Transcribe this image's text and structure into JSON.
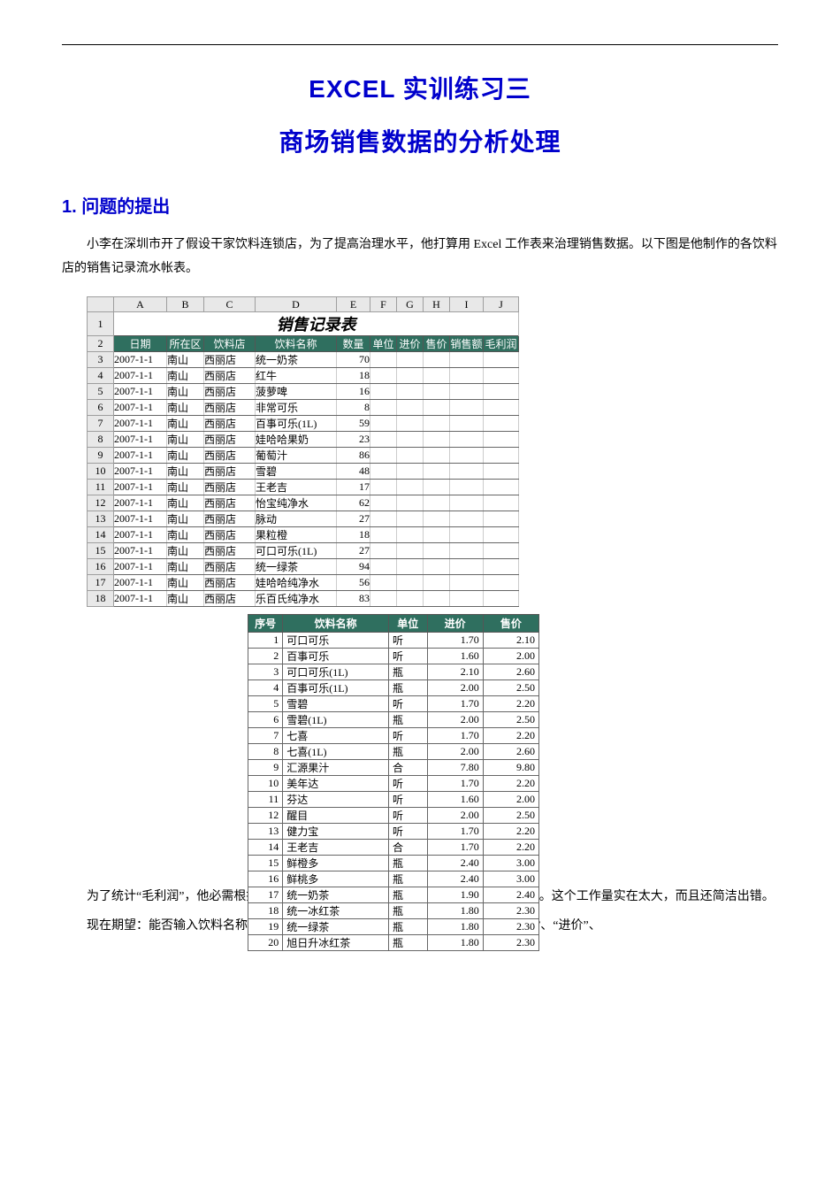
{
  "titles": {
    "line1": "EXCEL 实训练习三",
    "line2": "商场销售数据的分析处理"
  },
  "section1": {
    "heading": "1.  问题的提出",
    "para1": "小李在深圳市开了假设干家饮料连锁店，为了提高治理水平，他打算用 Excel 工作表来治理销售数据。以下图是他制作的各饮料店的销售记录流水帐表。",
    "para2": "为了统计“毛利润”，他必需根据“饮料根本信息”表中查找每种饮料的“进价”和“售价”。这个工作量实在太大，而且还简洁出错。",
    "para3": "现在期望：能否输入饮料名称后，让 Excel 依据这个名称自动去查找该饮料的“单位”、“进价”、"
  },
  "excel": {
    "columns": [
      "A",
      "B",
      "C",
      "D",
      "E",
      "F",
      "G",
      "H",
      "I",
      "J"
    ],
    "widths": [
      60,
      42,
      58,
      92,
      38,
      30,
      30,
      30,
      38,
      40
    ],
    "sheet_title": "销售记录表",
    "headers": [
      "日期",
      "所在区",
      "饮料店",
      "饮料名称",
      "数量",
      "单位",
      "进价",
      "售价",
      "销售额",
      "毛利润"
    ],
    "rows": [
      [
        "2007-1-1",
        "南山",
        "西丽店",
        "统一奶茶",
        "70",
        "",
        "",
        "",
        "",
        ""
      ],
      [
        "2007-1-1",
        "南山",
        "西丽店",
        "红牛",
        "18",
        "",
        "",
        "",
        "",
        ""
      ],
      [
        "2007-1-1",
        "南山",
        "西丽店",
        "菠萝啤",
        "16",
        "",
        "",
        "",
        "",
        ""
      ],
      [
        "2007-1-1",
        "南山",
        "西丽店",
        "非常可乐",
        "8",
        "",
        "",
        "",
        "",
        ""
      ],
      [
        "2007-1-1",
        "南山",
        "西丽店",
        "百事可乐(1L)",
        "59",
        "",
        "",
        "",
        "",
        ""
      ],
      [
        "2007-1-1",
        "南山",
        "西丽店",
        "娃哈哈果奶",
        "23",
        "",
        "",
        "",
        "",
        ""
      ],
      [
        "2007-1-1",
        "南山",
        "西丽店",
        "葡萄汁",
        "86",
        "",
        "",
        "",
        "",
        ""
      ],
      [
        "2007-1-1",
        "南山",
        "西丽店",
        "雪碧",
        "48",
        "",
        "",
        "",
        "",
        ""
      ],
      [
        "2007-1-1",
        "南山",
        "西丽店",
        "王老吉",
        "17",
        "",
        "",
        "",
        "",
        ""
      ],
      [
        "2007-1-1",
        "南山",
        "西丽店",
        "怡宝纯净水",
        "62",
        "",
        "",
        "",
        "",
        ""
      ],
      [
        "2007-1-1",
        "南山",
        "西丽店",
        "脉动",
        "27",
        "",
        "",
        "",
        "",
        ""
      ],
      [
        "2007-1-1",
        "南山",
        "西丽店",
        "果粒橙",
        "18",
        "",
        "",
        "",
        "",
        ""
      ],
      [
        "2007-1-1",
        "南山",
        "西丽店",
        "可口可乐(1L)",
        "27",
        "",
        "",
        "",
        "",
        ""
      ],
      [
        "2007-1-1",
        "南山",
        "西丽店",
        "统一绿茶",
        "94",
        "",
        "",
        "",
        "",
        ""
      ],
      [
        "2007-1-1",
        "南山",
        "西丽店",
        "娃哈哈纯净水",
        "56",
        "",
        "",
        "",
        "",
        ""
      ],
      [
        "2007-1-1",
        "南山",
        "西丽店",
        "乐百氏纯净水",
        "83",
        "",
        "",
        "",
        "",
        ""
      ]
    ]
  },
  "price": {
    "headers": [
      "序号",
      "饮料名称",
      "单位",
      "进价",
      "售价"
    ],
    "rows": [
      [
        "1",
        "可口可乐",
        "听",
        "1.70",
        "2.10"
      ],
      [
        "2",
        "百事可乐",
        "听",
        "1.60",
        "2.00"
      ],
      [
        "3",
        "可口可乐(1L)",
        "瓶",
        "2.10",
        "2.60"
      ],
      [
        "4",
        "百事可乐(1L)",
        "瓶",
        "2.00",
        "2.50"
      ],
      [
        "5",
        "雪碧",
        "听",
        "1.70",
        "2.20"
      ],
      [
        "6",
        "雪碧(1L)",
        "瓶",
        "2.00",
        "2.50"
      ],
      [
        "7",
        "七喜",
        "听",
        "1.70",
        "2.20"
      ],
      [
        "8",
        "七喜(1L)",
        "瓶",
        "2.00",
        "2.60"
      ],
      [
        "9",
        "汇源果汁",
        "合",
        "7.80",
        "9.80"
      ],
      [
        "10",
        "美年达",
        "听",
        "1.70",
        "2.20"
      ],
      [
        "11",
        "芬达",
        "听",
        "1.60",
        "2.00"
      ],
      [
        "12",
        "醒目",
        "听",
        "2.00",
        "2.50"
      ],
      [
        "13",
        "健力宝",
        "听",
        "1.70",
        "2.20"
      ],
      [
        "14",
        "王老吉",
        "合",
        "1.70",
        "2.20"
      ],
      [
        "15",
        "鲜橙多",
        "瓶",
        "2.40",
        "3.00"
      ],
      [
        "16",
        "鲜桃多",
        "瓶",
        "2.40",
        "3.00"
      ],
      [
        "17",
        "统一奶茶",
        "瓶",
        "1.90",
        "2.40"
      ],
      [
        "18",
        "统一冰红茶",
        "瓶",
        "1.80",
        "2.30"
      ],
      [
        "19",
        "统一绿茶",
        "瓶",
        "1.80",
        "2.30"
      ],
      [
        "20",
        "旭日升冰红茶",
        "瓶",
        "1.80",
        "2.30"
      ]
    ]
  },
  "colors": {
    "heading": "#0000cc",
    "table_header_bg": "#2f6f5f",
    "table_header_fg": "#ffffff",
    "grid_header_bg": "#e8e8e8"
  }
}
